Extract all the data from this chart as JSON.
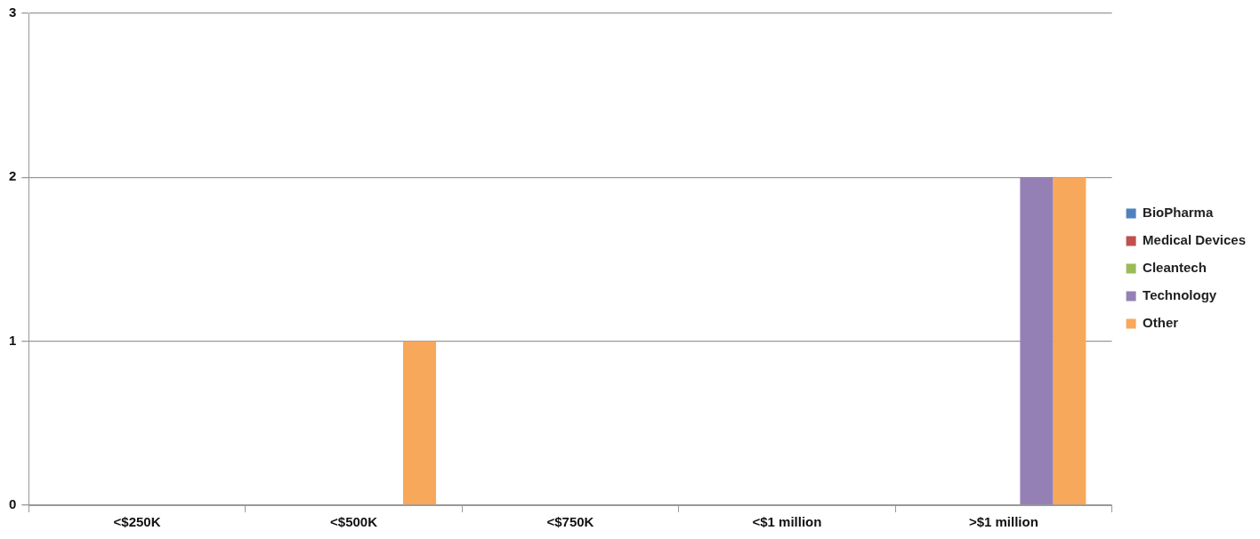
{
  "chart_data": {
    "type": "bar",
    "categories": [
      "<$250K",
      "<$500K",
      "<$750K",
      "<$1 million",
      ">$1 million"
    ],
    "series": [
      {
        "name": "BioPharma",
        "color": "#4f81bd",
        "values": [
          0,
          0,
          0,
          0,
          0
        ]
      },
      {
        "name": "Medical Devices",
        "color": "#c0504d",
        "values": [
          0,
          0,
          0,
          0,
          0
        ]
      },
      {
        "name": "Cleantech",
        "color": "#9bbb59",
        "values": [
          0,
          0,
          0,
          0,
          0
        ]
      },
      {
        "name": "Technology",
        "color": "#9580b6",
        "values": [
          0,
          0,
          0,
          0,
          2
        ]
      },
      {
        "name": "Other",
        "color": "#f8a85a",
        "values": [
          0,
          1,
          0,
          0,
          2
        ]
      }
    ],
    "ylim": [
      0,
      3
    ],
    "yticks": [
      0,
      1,
      2,
      3
    ],
    "grid": "y",
    "legend": "right"
  }
}
